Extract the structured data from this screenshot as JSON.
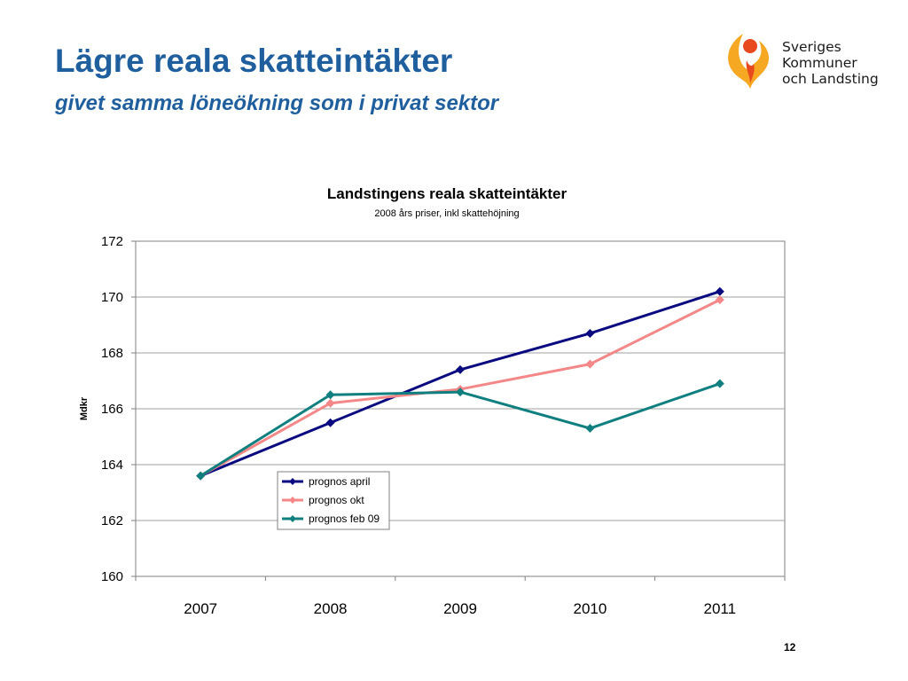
{
  "slide": {
    "title": "Lägre reala skatteintäkter",
    "subtitle": "givet samma löneökning som i privat sektor",
    "page_number": "12"
  },
  "logo": {
    "lines": [
      "Sveriges",
      "Kommuner",
      "och Landsting"
    ],
    "colors": {
      "orange": "#f7a823",
      "red": "#e8491d"
    }
  },
  "chart_data": {
    "type": "line",
    "title": "Landstingens reala skatteintäkter",
    "subtitle": "2008 års priser, inkl skattehöjning",
    "ylabel": "Mdkr",
    "xlabel": "",
    "categories": [
      "2007",
      "2008",
      "2009",
      "2010",
      "2011"
    ],
    "ylim": [
      160,
      172
    ],
    "yticks": [
      "160",
      "162",
      "164",
      "166",
      "168",
      "170",
      "172"
    ],
    "grid": true,
    "legend_position": "inside-bottom-left",
    "series": [
      {
        "name": "prognos april",
        "color": "#0a0a80",
        "values": [
          163.6,
          165.5,
          167.4,
          168.7,
          170.2
        ]
      },
      {
        "name": "prognos okt",
        "color": "#f48888",
        "values": [
          163.6,
          166.2,
          166.7,
          167.6,
          169.9
        ]
      },
      {
        "name": "prognos feb 09",
        "color": "#107f7f",
        "values": [
          163.6,
          166.5,
          166.6,
          165.3,
          166.9
        ]
      }
    ]
  }
}
